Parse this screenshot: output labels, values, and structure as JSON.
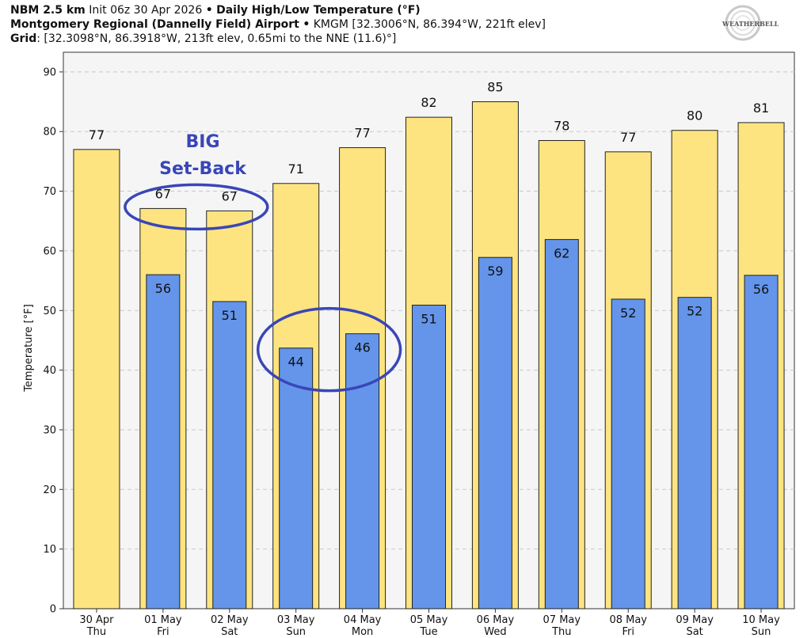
{
  "header": {
    "line1": {
      "model": "NBM 2.5 km",
      "init": "Init 06z 30 Apr 2026",
      "sep": "•",
      "product": "Daily High/Low Temperature (°F)"
    },
    "line2": {
      "station": "Montgomery Regional (Dannelly Field) Airport",
      "sep": "•",
      "details": "KMGM [32.3006°N, 86.394°W, 221ft elev]"
    },
    "line3": {
      "label": "Grid",
      "details": ": [32.3098°N, 86.3918°W, 213ft elev, 0.65mi to the NNE (11.6)°]"
    }
  },
  "logo": {
    "text": "WEATHERBELL",
    "icon": "weatherbell-swirl-logo-icon"
  },
  "annotation": {
    "line1": "BIG",
    "line2": "Set-Back",
    "color": "#3946b8"
  },
  "chart_data": {
    "type": "bar",
    "title": "",
    "ylabel": "Temperature [°F]",
    "xlabel": "",
    "ylim": [
      0,
      90
    ],
    "yticks": [
      0,
      10,
      20,
      30,
      40,
      50,
      60,
      70,
      80,
      90
    ],
    "grid": true,
    "categories": [
      {
        "date": "30 Apr",
        "day": "Thu"
      },
      {
        "date": "01 May",
        "day": "Fri"
      },
      {
        "date": "02 May",
        "day": "Sat"
      },
      {
        "date": "03 May",
        "day": "Sun"
      },
      {
        "date": "04 May",
        "day": "Mon"
      },
      {
        "date": "05 May",
        "day": "Tue"
      },
      {
        "date": "06 May",
        "day": "Wed"
      },
      {
        "date": "07 May",
        "day": "Thu"
      },
      {
        "date": "08 May",
        "day": "Fri"
      },
      {
        "date": "09 May",
        "day": "Sat"
      },
      {
        "date": "10 May",
        "day": "Sun"
      }
    ],
    "series": [
      {
        "values": [
          77,
          67,
          67,
          71,
          77,
          82,
          85,
          78,
          77,
          80,
          81
        ],
        "actual": [
          77.0,
          67.1,
          66.7,
          71.3,
          77.3,
          82.4,
          85.0,
          78.5,
          76.6,
          80.2,
          81.5
        ],
        "color": "#fde480"
      },
      {
        "values": [
          null,
          56,
          51,
          44,
          46,
          51,
          59,
          62,
          52,
          52,
          56
        ],
        "actual": [
          null,
          56.0,
          51.5,
          43.7,
          46.1,
          50.9,
          58.9,
          61.9,
          51.9,
          52.2,
          55.9
        ],
        "color": "#6495ea"
      }
    ],
    "highlights": [
      {
        "series": 0,
        "indices": [
          1,
          2
        ],
        "shape": "ellipse"
      },
      {
        "series": 1,
        "indices": [
          3,
          4
        ],
        "shape": "ellipse"
      }
    ]
  }
}
